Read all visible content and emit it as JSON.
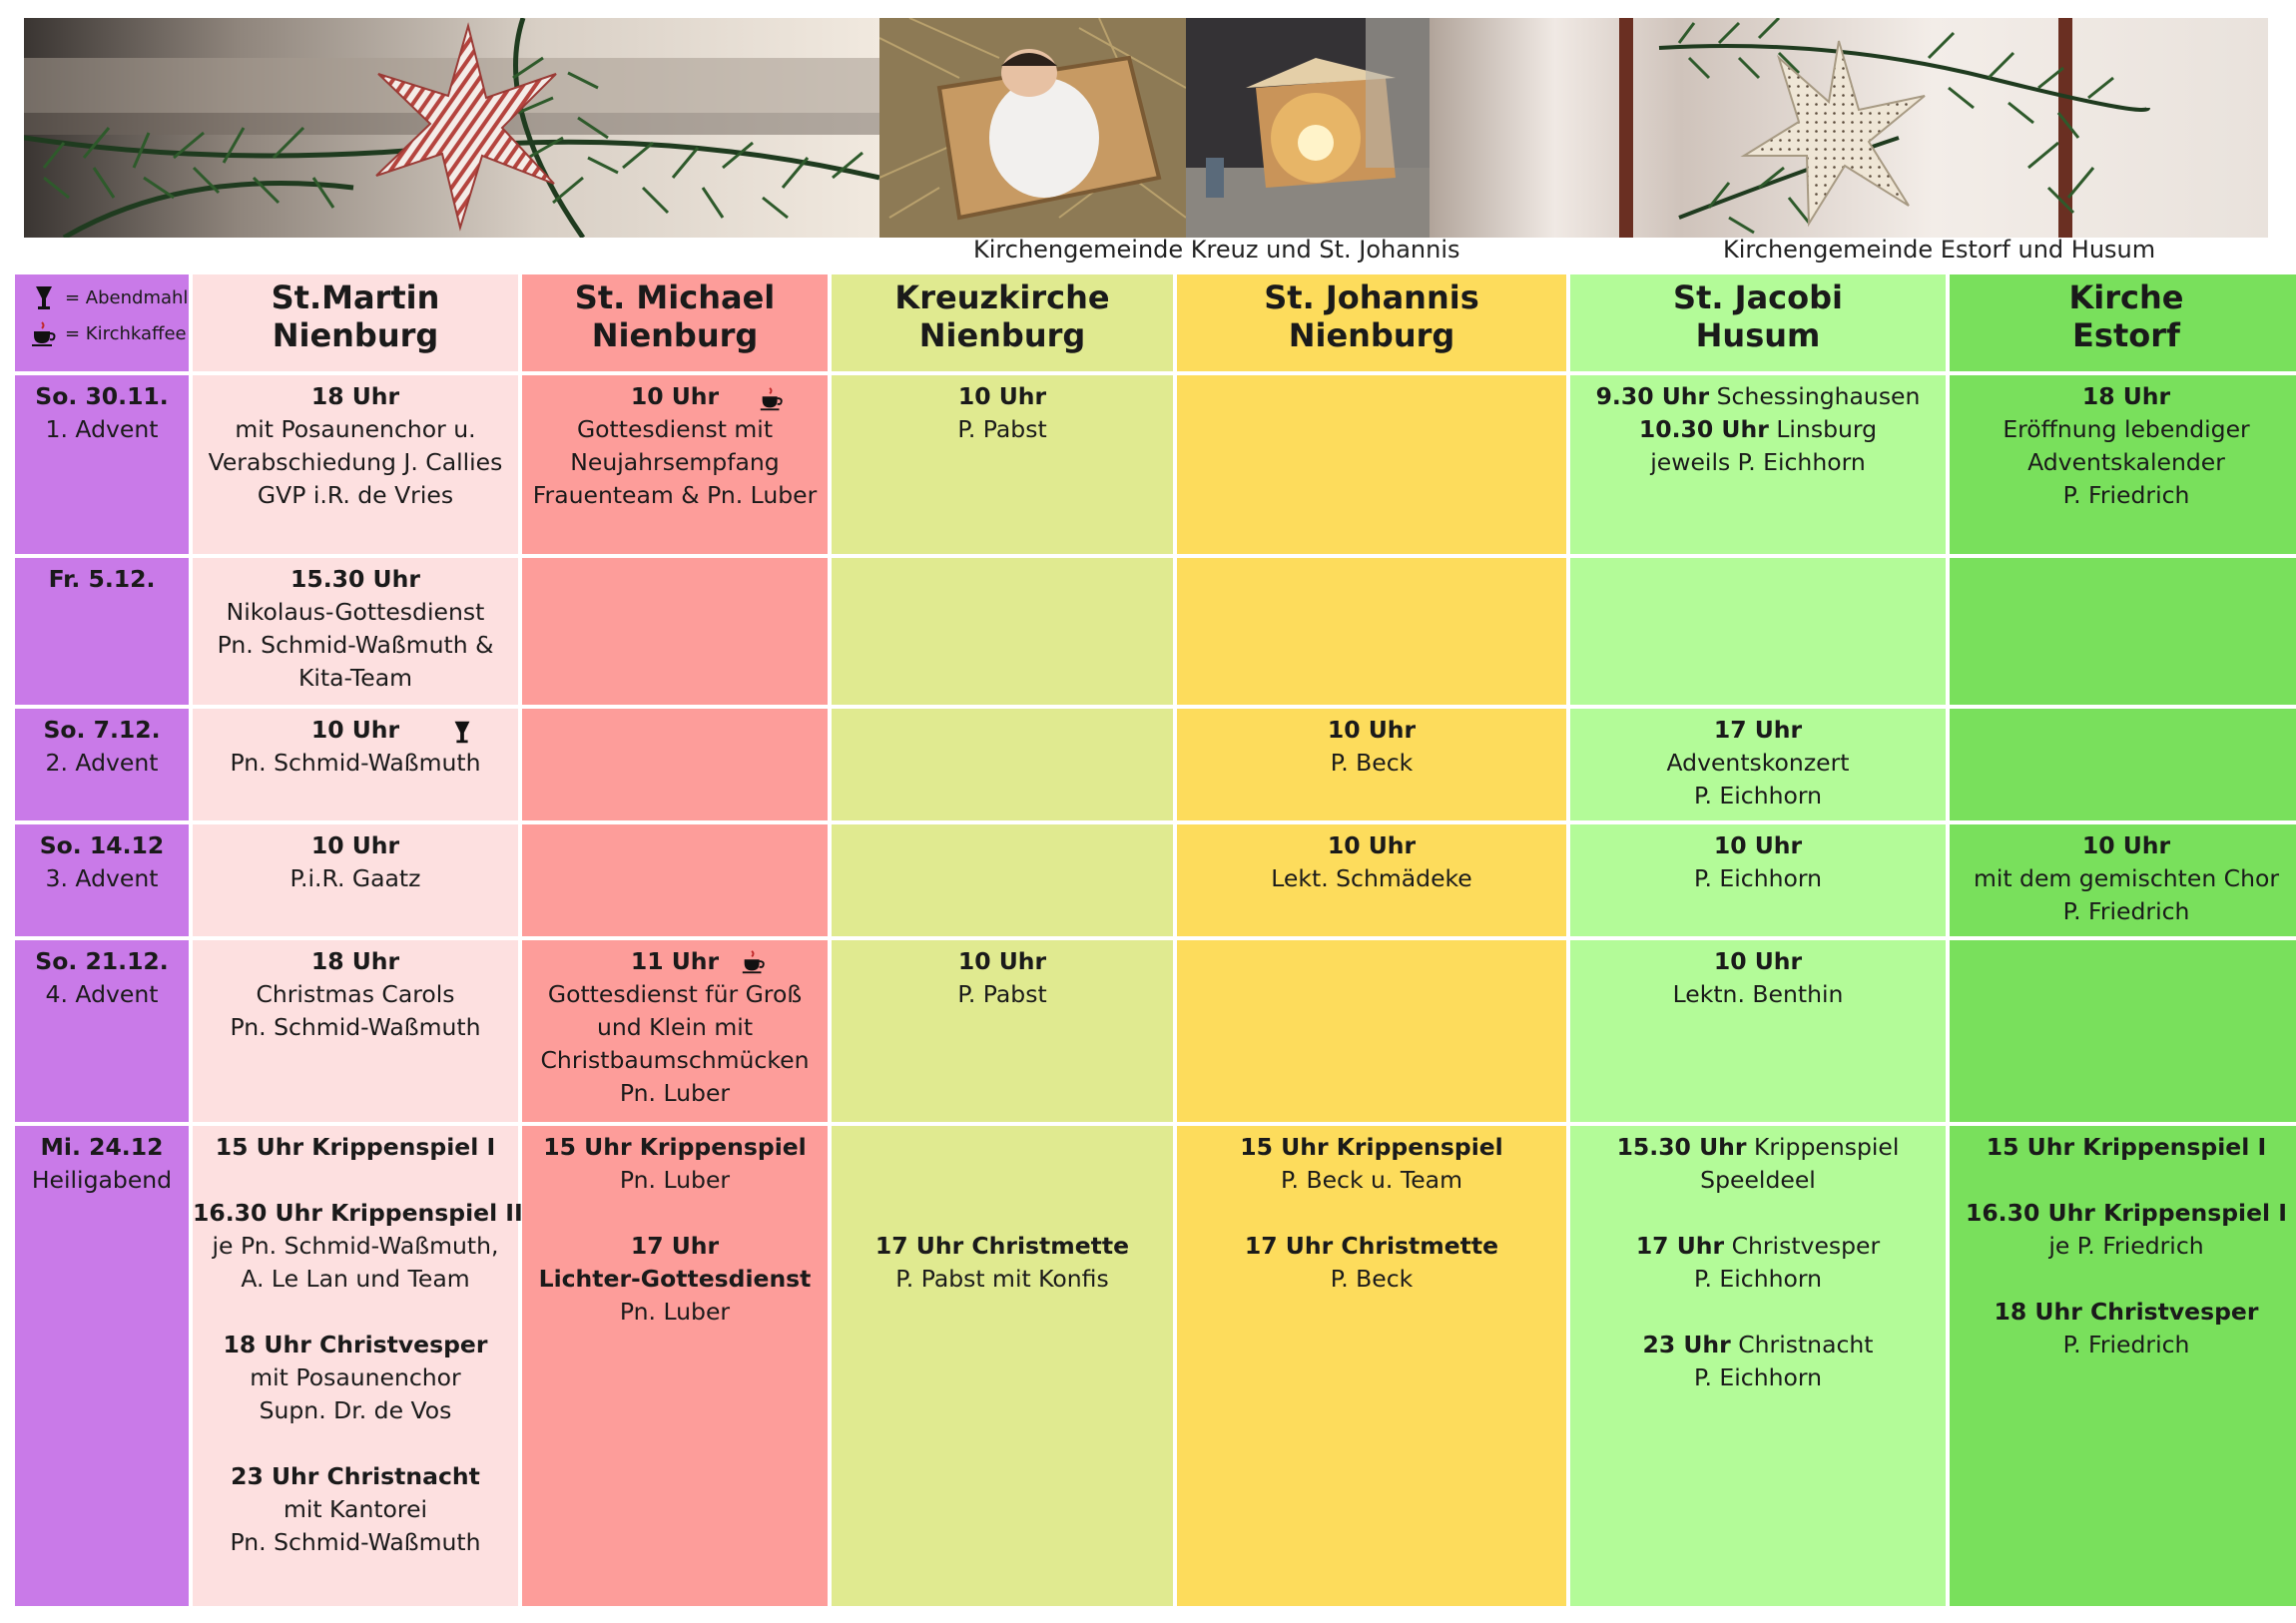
{
  "captions": {
    "kreuz_johannis": "Kirchengemeinde Kreuz und St. Johannis",
    "estorf_husum": "Kirchengemeinde Estorf und Husum"
  },
  "legend": {
    "abendmahl": "= Abendmahl",
    "kirchkaffee": "= Kirchkaffee",
    "abendmahl_icon": "chalice-icon",
    "kirchkaffee_icon": "coffee-cup-icon"
  },
  "columns": [
    {
      "line1": "St.Martin",
      "line2": "Nienburg",
      "color": "#fde0e0"
    },
    {
      "line1": "St. Michael",
      "line2": "Nienburg",
      "color": "#fd9d9a"
    },
    {
      "line1": "Kreuzkirche",
      "line2": "Nienburg",
      "color": "#e0ea90"
    },
    {
      "line1": "St. Johannis",
      "line2": "Nienburg",
      "color": "#fddc5c"
    },
    {
      "line1": "St. Jacobi",
      "line2": "Husum",
      "color": "#b3fb98"
    },
    {
      "line1": "Kirche",
      "line2": "Estorf",
      "color": "#79e05c"
    }
  ],
  "date_column_color": "#c97ae8",
  "rows": [
    {
      "date": "So. 30.11.",
      "occasion": "1. Advent",
      "cells": [
        [
          "[b]18 Uhr",
          "mit Posaunenchor u.",
          "Verabschiedung J. Callies",
          "GVP i.R. de Vries"
        ],
        [
          "[b]10 Uhr",
          "Gottesdienst mit",
          "Neujahrsempfang",
          "Frauenteam & Pn. Luber"
        ],
        [
          "[b]10 Uhr",
          "P. Pabst"
        ],
        [],
        [
          "[b]9.30 Uhr| Schessinghausen",
          "[b]10.30 Uhr| Linsburg",
          "jeweils P. Eichhorn"
        ],
        [
          "[b]18 Uhr",
          "Eröffnung lebendiger",
          "Adventskalender",
          "P. Friedrich"
        ]
      ]
    },
    {
      "date": "Fr. 5.12.",
      "occasion": "",
      "cells": [
        [
          "[b]15.30 Uhr",
          "Nikolaus-Gottesdienst",
          "Pn. Schmid-Waßmuth &",
          "Kita-Team"
        ],
        [],
        [],
        [],
        [],
        []
      ]
    },
    {
      "date": "So. 7.12.",
      "occasion": "2. Advent",
      "cells": [
        [
          "[b]10 Uhr",
          "Pn. Schmid-Waßmuth"
        ],
        [],
        [],
        [
          "[b]10 Uhr",
          "P. Beck"
        ],
        [
          "[b]17 Uhr",
          "Adventskonzert",
          "P. Eichhorn"
        ],
        []
      ]
    },
    {
      "date": "So. 14.12",
      "occasion": "3. Advent",
      "cells": [
        [
          "[b]10 Uhr",
          "P.i.R. Gaatz"
        ],
        [],
        [],
        [
          "[b]10 Uhr",
          "Lekt. Schmädeke"
        ],
        [
          "[b]10 Uhr",
          "P. Eichhorn"
        ],
        [
          "[b]10 Uhr",
          "mit dem gemischten Chor",
          "P. Friedrich"
        ]
      ]
    },
    {
      "date": "So. 21.12.",
      "occasion": "4. Advent",
      "cells": [
        [
          "[b]18 Uhr",
          "Christmas Carols",
          "Pn. Schmid-Waßmuth"
        ],
        [
          "[b]11 Uhr",
          "Gottesdienst für Groß",
          "und Klein mit",
          "Christbaumschmücken",
          "Pn. Luber"
        ],
        [
          "[b]10 Uhr",
          "P. Pabst"
        ],
        [],
        [
          "[b]10 Uhr",
          "Lektn. Benthin"
        ],
        []
      ]
    },
    {
      "date": "Mi. 24.12",
      "occasion": "Heiligabend",
      "cells": [
        [
          "[b]15 Uhr Krippenspiel I",
          "",
          "[b]16.30 Uhr Krippenspiel II",
          "je Pn. Schmid-Waßmuth,",
          "A. Le Lan und Team",
          "",
          "[b]18 Uhr Christvesper",
          "mit Posaunenchor",
          "Supn. Dr. de Vos",
          "",
          "[b]23 Uhr Christnacht",
          "mit Kantorei",
          "Pn. Schmid-Waßmuth"
        ],
        [
          "[b]15 Uhr Krippenspiel",
          "Pn. Luber",
          "",
          "[b]17 Uhr",
          "[b]Lichter-Gottesdienst",
          "Pn. Luber"
        ],
        [
          "",
          "",
          "",
          "[b]17 Uhr Christmette",
          "P. Pabst mit Konfis"
        ],
        [
          "[b]15 Uhr Krippenspiel",
          "P. Beck u. Team",
          "",
          "[b]17 Uhr Christmette",
          "P. Beck"
        ],
        [
          "[b]15.30 Uhr| Krippenspiel",
          "Speeldeel",
          "",
          "[b]17 Uhr| Christvesper",
          "P. Eichhorn",
          "",
          "[b]23 Uhr| Christnacht",
          "P. Eichhorn"
        ],
        [
          "[b]15 Uhr Krippenspiel I",
          "",
          "[b]16.30 Uhr Krippenspiel I",
          "je P. Friedrich",
          "",
          "[b]18 Uhr Christvesper",
          "P. Friedrich"
        ]
      ]
    }
  ]
}
